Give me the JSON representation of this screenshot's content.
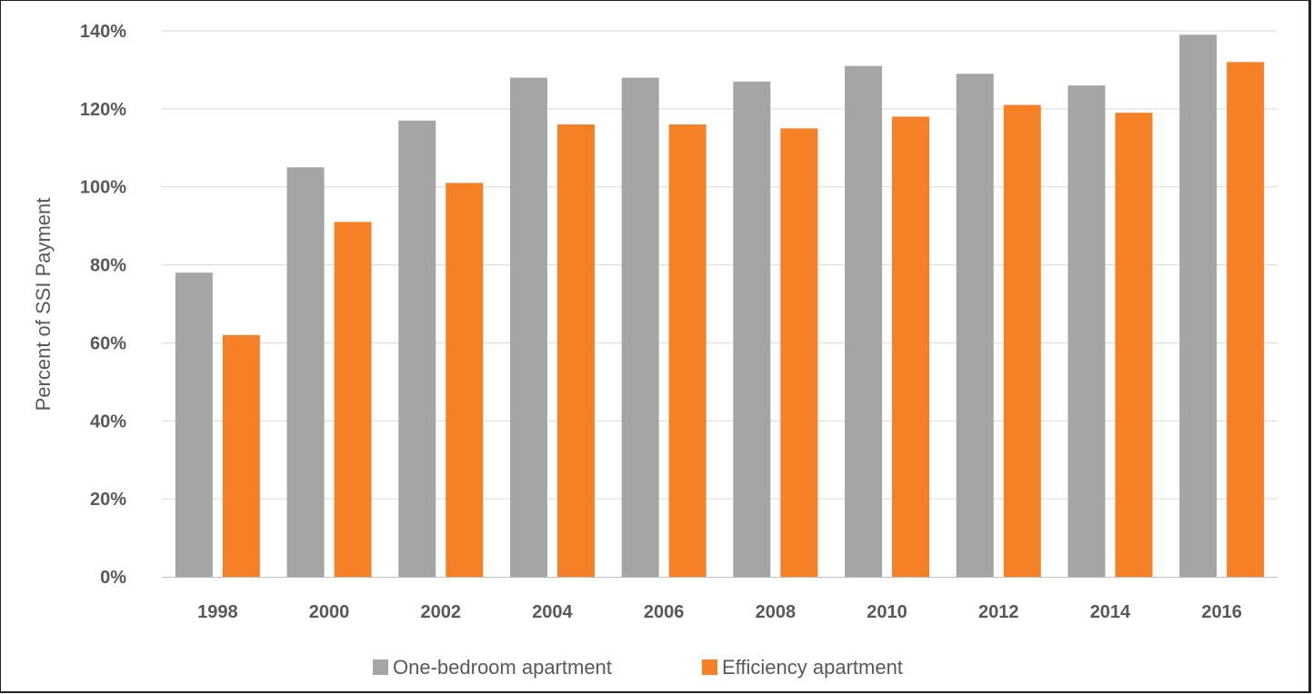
{
  "chart_data": {
    "type": "bar",
    "title": "",
    "xlabel": "",
    "ylabel": "Percent of SSI Payment",
    "categories": [
      "1998",
      "2000",
      "2002",
      "2004",
      "2006",
      "2008",
      "2010",
      "2012",
      "2014",
      "2016"
    ],
    "series": [
      {
        "name": "One-bedroom apartment",
        "color": "#a5a5a5",
        "values": [
          78,
          105,
          117,
          128,
          128,
          127,
          131,
          129,
          126,
          139
        ]
      },
      {
        "name": "Efficiency apartment",
        "color": "#f58025",
        "values": [
          62,
          91,
          101,
          116,
          116,
          115,
          118,
          121,
          119,
          132
        ]
      }
    ],
    "ylim": [
      0,
      140
    ],
    "yticks": [
      "0%",
      "20%",
      "40%",
      "60%",
      "80%",
      "100%",
      "120%",
      "140%"
    ],
    "grid": true,
    "legend_position": "bottom"
  }
}
